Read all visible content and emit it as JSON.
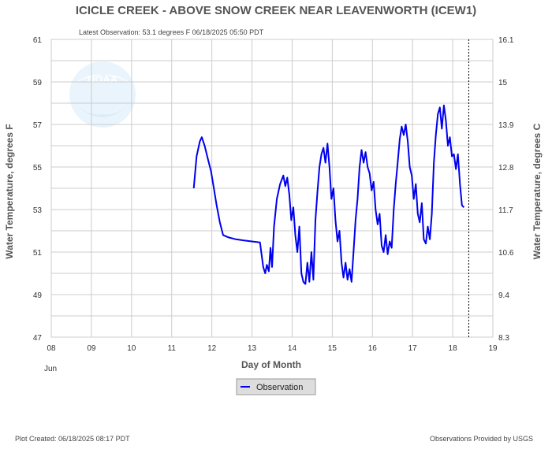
{
  "chart_data": {
    "type": "line",
    "title": "ICICLE CREEK - ABOVE SNOW CREEK NEAR LEAVENWORTH  (ICEW1)",
    "subtitle": "Latest Observation: 53.1 degrees F 06/18/2025 05:50 PDT",
    "xlabel": "Day of Month",
    "x_month_label": "Jun",
    "ylabel_left": "Water Temperature, degrees F",
    "ylabel_right": "Water Temperature, degrees C",
    "xlim": [
      8,
      19
    ],
    "ylim": [
      47,
      61
    ],
    "x_ticks": [
      "08",
      "09",
      "10",
      "11",
      "12",
      "13",
      "14",
      "15",
      "16",
      "17",
      "18",
      "19"
    ],
    "y_ticks_left": [
      "47",
      "49",
      "51",
      "53",
      "55",
      "57",
      "59",
      "61"
    ],
    "y_ticks_right": [
      "8.3",
      "9.4",
      "10.6",
      "11.7",
      "12.8",
      "13.9",
      "15",
      "16.1"
    ],
    "grid": true,
    "legend_position": "bottom-center",
    "current_time_marker_x": 18.4,
    "series": [
      {
        "name": "Observation",
        "color": "#0000ee",
        "x": [
          11.55,
          11.62,
          11.7,
          11.75,
          11.82,
          11.9,
          11.98,
          12.05,
          12.12,
          12.2,
          12.28,
          12.4,
          12.6,
          12.8,
          13.0,
          13.2,
          13.28,
          13.33,
          13.37,
          13.42,
          13.46,
          13.5,
          13.55,
          13.62,
          13.7,
          13.78,
          13.83,
          13.88,
          13.93,
          13.98,
          14.03,
          14.08,
          14.13,
          14.18,
          14.23,
          14.28,
          14.33,
          14.38,
          14.43,
          14.48,
          14.53,
          14.58,
          14.63,
          14.68,
          14.73,
          14.78,
          14.83,
          14.88,
          14.93,
          14.98,
          15.03,
          15.08,
          15.13,
          15.18,
          15.23,
          15.28,
          15.33,
          15.38,
          15.43,
          15.48,
          15.53,
          15.58,
          15.63,
          15.68,
          15.73,
          15.78,
          15.83,
          15.88,
          15.93,
          15.98,
          16.03,
          16.08,
          16.13,
          16.18,
          16.23,
          16.28,
          16.33,
          16.38,
          16.43,
          16.48,
          16.53,
          16.58,
          16.63,
          16.68,
          16.73,
          16.78,
          16.83,
          16.88,
          16.93,
          16.98,
          17.03,
          17.08,
          17.13,
          17.18,
          17.23,
          17.28,
          17.33,
          17.38,
          17.43,
          17.48,
          17.53,
          17.58,
          17.63,
          17.68,
          17.73,
          17.78,
          17.83,
          17.88,
          17.93,
          17.98,
          18.03,
          18.08,
          18.13,
          18.18,
          18.23,
          18.28
        ],
        "y": [
          54.0,
          55.5,
          56.2,
          56.4,
          56.0,
          55.4,
          54.8,
          54.0,
          53.2,
          52.4,
          51.8,
          51.7,
          51.6,
          51.55,
          51.5,
          51.45,
          50.3,
          50.0,
          50.4,
          50.1,
          51.2,
          50.3,
          52.2,
          53.5,
          54.2,
          54.6,
          54.1,
          54.5,
          53.7,
          52.5,
          53.1,
          51.8,
          51.0,
          52.2,
          50.0,
          49.6,
          49.5,
          50.5,
          49.6,
          51.0,
          49.7,
          52.5,
          53.8,
          55.0,
          55.6,
          55.9,
          55.2,
          56.1,
          55.0,
          53.5,
          54.0,
          52.5,
          51.5,
          52.0,
          50.5,
          49.8,
          50.5,
          49.7,
          50.2,
          49.6,
          51.0,
          52.5,
          53.5,
          55.0,
          55.8,
          55.2,
          55.7,
          55.0,
          54.7,
          53.9,
          54.3,
          53.0,
          52.3,
          52.8,
          51.3,
          51.0,
          51.8,
          50.9,
          51.5,
          51.2,
          53.0,
          54.2,
          55.2,
          56.3,
          56.9,
          56.5,
          57.0,
          56.2,
          55.0,
          54.6,
          53.5,
          54.2,
          52.8,
          52.4,
          53.3,
          51.6,
          51.4,
          52.2,
          51.6,
          52.8,
          55.2,
          56.5,
          57.5,
          57.8,
          56.8,
          57.9,
          57.2,
          56.0,
          56.4,
          55.5,
          55.6,
          54.9,
          55.6,
          54.2,
          53.2,
          53.1
        ]
      }
    ]
  },
  "footer": {
    "created": "Plot Created: 06/18/2025 08:17 PDT",
    "provider": "Observations Provided by USGS"
  },
  "watermark_text": "NOAA",
  "icons": {
    "watermark": "noaa-logo-icon",
    "legend_swatch": "blue-line-swatch-icon"
  },
  "colors": {
    "series": "#0000ee",
    "plot_background": "#ffffff",
    "grid": "#cccccc",
    "legend_background": "#dddddd",
    "marker": "#000000"
  }
}
